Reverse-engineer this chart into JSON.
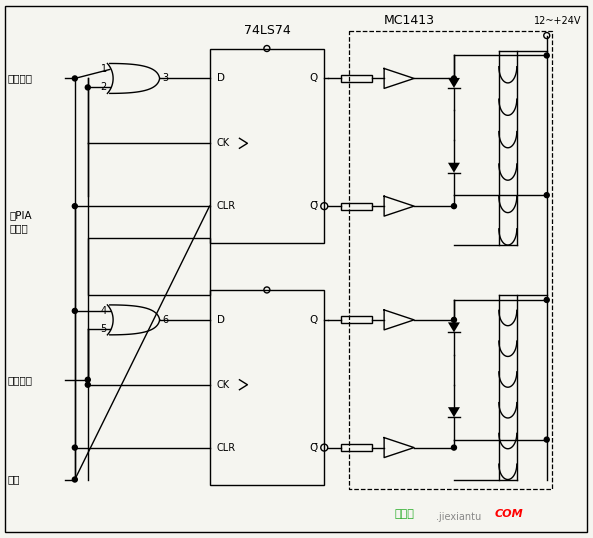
{
  "bg_color": "#f5f5f0",
  "line_color": "#000000",
  "label_74ls74": "74LS74",
  "label_mc1413": "MC1413",
  "label_voltage": "12~+24V",
  "label_fxkz": "方向控制",
  "label_pia1": "至PIA",
  "label_pia2": "的入口",
  "label_drive": "驱动脉冲",
  "label_reset": "复位",
  "watermark1": "极客圈",
  "watermark2": ".jiexiantu",
  "watermark3": "COM"
}
